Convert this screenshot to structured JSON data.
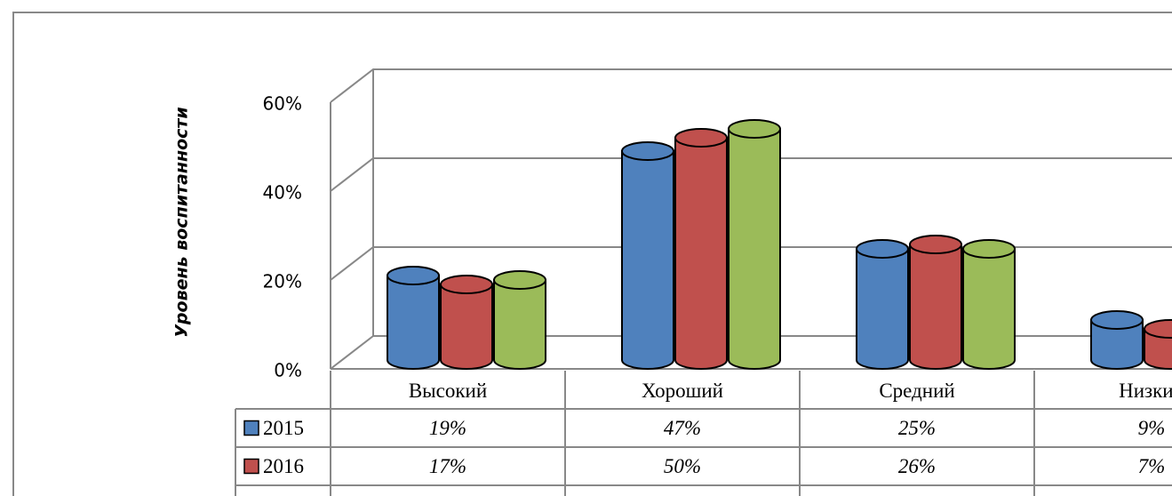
{
  "chart_data": {
    "type": "bar3d",
    "y_label": "Уровень воспитанности",
    "categories": [
      "Высокий",
      "Хороший",
      "Средний",
      "Низкий"
    ],
    "series": [
      {
        "name": "2015",
        "color": "#4f81bd",
        "values": [
          19,
          47,
          25,
          9
        ],
        "value_labels": [
          "19%",
          "47%",
          "25%",
          "9%"
        ]
      },
      {
        "name": "2016",
        "color": "#c0504d",
        "values": [
          17,
          50,
          26,
          7
        ],
        "value_labels": [
          "17%",
          "50%",
          "26%",
          "7%"
        ]
      },
      {
        "color": "#9bbb59",
        "values": [
          18,
          52,
          25,
          null
        ]
      }
    ],
    "ylim": [
      0,
      60
    ],
    "yticks": [
      {
        "value": 0,
        "label": "0%"
      },
      {
        "value": 20,
        "label": "20%"
      },
      {
        "value": 40,
        "label": "40%"
      },
      {
        "value": 60,
        "label": "60%"
      }
    ],
    "grid": true
  }
}
